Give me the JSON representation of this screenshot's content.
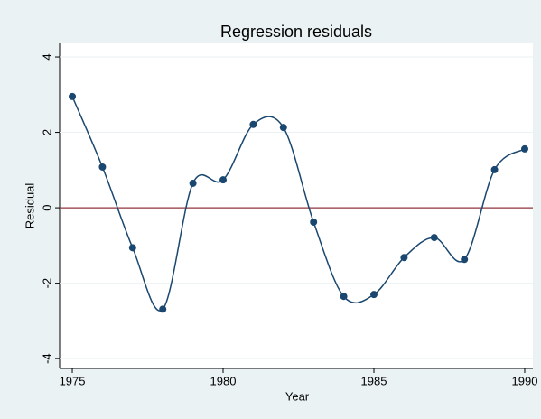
{
  "chart_data": {
    "type": "line",
    "title": "Regression residuals",
    "x_label": "Year",
    "y_label": "Residual",
    "x": [
      1975,
      1976,
      1977,
      1978,
      1979,
      1980,
      1981,
      1982,
      1983,
      1984,
      1985,
      1986,
      1987,
      1988,
      1989,
      1990
    ],
    "series": [
      {
        "name": "Residual",
        "color": "#1a476f",
        "values": [
          2.95,
          1.08,
          -1.06,
          -2.69,
          0.65,
          0.74,
          2.21,
          2.13,
          -0.38,
          -2.35,
          -2.3,
          -1.32,
          -0.79,
          -1.37,
          1.01,
          1.56
        ]
      }
    ],
    "xlim": [
      1974.58,
      1990.27
    ],
    "xticks": [
      1975,
      1980,
      1985,
      1990
    ],
    "ylim": [
      -4.26,
      4.36
    ],
    "yticks": [
      -4,
      -2,
      0,
      2,
      4
    ],
    "hline": 0,
    "hline_color": "#90353b",
    "grid": true
  }
}
